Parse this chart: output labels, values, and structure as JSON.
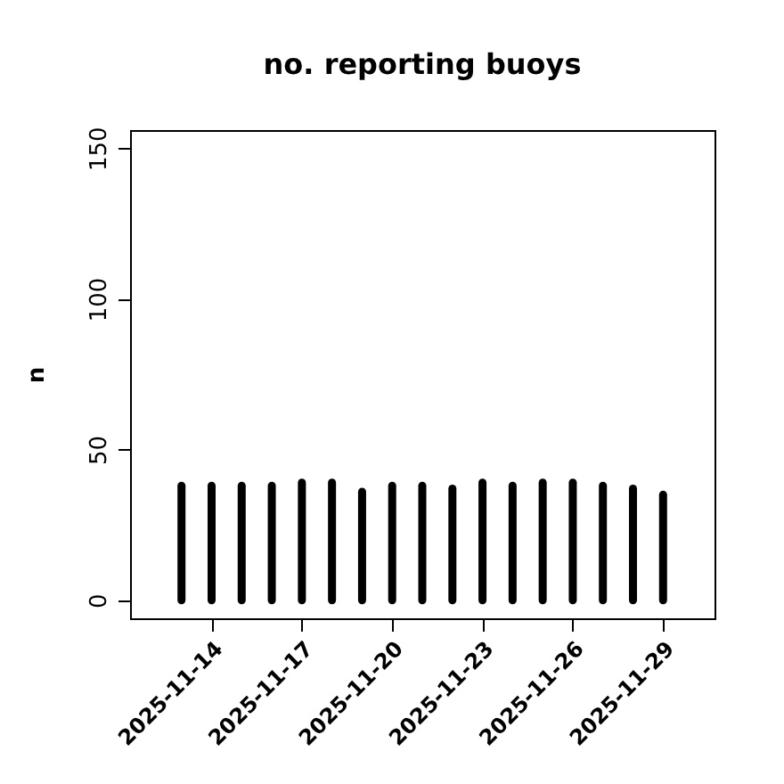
{
  "chart_data": {
    "type": "bar",
    "title": "no. reporting buoys",
    "ylabel": "n",
    "x": [
      "2025-11-13",
      "2025-11-14",
      "2025-11-15",
      "2025-11-16",
      "2025-11-17",
      "2025-11-18",
      "2025-11-19",
      "2025-11-20",
      "2025-11-21",
      "2025-11-22",
      "2025-11-23",
      "2025-11-24",
      "2025-11-25",
      "2025-11-26",
      "2025-11-27",
      "2025-11-28",
      "2025-11-29"
    ],
    "series": [
      {
        "color": "#000000",
        "values": [
          38,
          38,
          38,
          38,
          39,
          39,
          36,
          38,
          38,
          37,
          39,
          38,
          39,
          39,
          38,
          37,
          35
        ]
      }
    ],
    "xlim": [
      "2025-11-11T07:00",
      "2025-11-30T17:00"
    ],
    "xticks": [
      "2025-11-14",
      "2025-11-17",
      "2025-11-20",
      "2025-11-23",
      "2025-11-26",
      "2025-11-29"
    ],
    "ylim": [
      -6,
      156
    ],
    "yticks": [
      0,
      50,
      100,
      150
    ],
    "grid": false
  }
}
